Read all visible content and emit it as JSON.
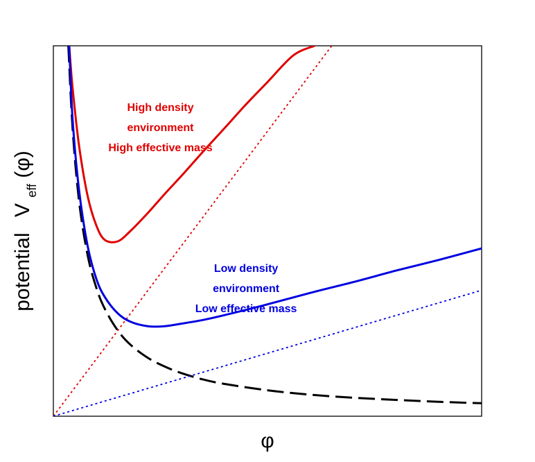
{
  "chart_data": {
    "type": "line",
    "title": "",
    "xlabel": "φ",
    "ylabel": {
      "text": "potential",
      "symbol": "V",
      "subscript": "eff",
      "argument": "(φ)"
    },
    "xlim": [
      0,
      10
    ],
    "ylim": [
      0,
      10
    ],
    "grid": false,
    "ticks": "none",
    "series": [
      {
        "key": "bare",
        "style": "dashed",
        "color": "#000000",
        "x": [
          0.35,
          0.45,
          0.6,
          0.8,
          1.0,
          1.2,
          1.5,
          1.8,
          2.2,
          2.6,
          3.0,
          3.5,
          4.0,
          5.0,
          6.0,
          7.0,
          8.0,
          9.0,
          10.0
        ],
        "y": [
          10.0,
          7.75,
          5.8,
          4.35,
          3.48,
          2.9,
          2.32,
          1.93,
          1.58,
          1.34,
          1.16,
          0.99,
          0.87,
          0.7,
          0.58,
          0.5,
          0.44,
          0.39,
          0.35
        ]
      },
      {
        "key": "high",
        "style": "solid",
        "color": "#e00000",
        "x": [
          0.37,
          0.45,
          0.6,
          0.8,
          1.0,
          1.2,
          1.5,
          1.8,
          2.2,
          2.6,
          3.0,
          3.5,
          4.0,
          4.5,
          5.0,
          5.6,
          6.1
        ],
        "y": [
          10.0,
          8.85,
          7.3,
          5.95,
          5.16,
          4.76,
          4.72,
          5.0,
          5.48,
          6.0,
          6.5,
          7.15,
          7.78,
          8.42,
          9.02,
          9.74,
          10.0
        ]
      },
      {
        "key": "high_linear",
        "style": "dotted",
        "color": "#e00000",
        "x": [
          0,
          6.5
        ],
        "y": [
          0,
          10.0
        ]
      },
      {
        "key": "low",
        "style": "solid",
        "color": "#0000e0",
        "x": [
          0.37,
          0.45,
          0.6,
          0.8,
          1.0,
          1.2,
          1.5,
          1.8,
          2.2,
          2.6,
          3.0,
          3.5,
          4.0,
          5.0,
          6.0,
          7.0,
          8.0,
          9.0,
          10.0
        ],
        "y": [
          10.0,
          8.0,
          6.1,
          4.6,
          3.72,
          3.22,
          2.78,
          2.55,
          2.43,
          2.43,
          2.5,
          2.6,
          2.73,
          3.02,
          3.33,
          3.62,
          3.93,
          4.22,
          4.53
        ]
      },
      {
        "key": "low_linear",
        "style": "dotted",
        "color": "#0000e0",
        "x": [
          0,
          10
        ],
        "y": [
          0,
          3.4
        ]
      }
    ],
    "annotations": [
      {
        "key": "high",
        "color": "#e00000",
        "x": 2.5,
        "lines": [
          "High density",
          "environment",
          "High effective mass"
        ]
      },
      {
        "key": "low",
        "color": "#0000e0",
        "x": 4.5,
        "lines": [
          "Low density",
          "environment",
          "Low effective mass"
        ]
      }
    ]
  }
}
